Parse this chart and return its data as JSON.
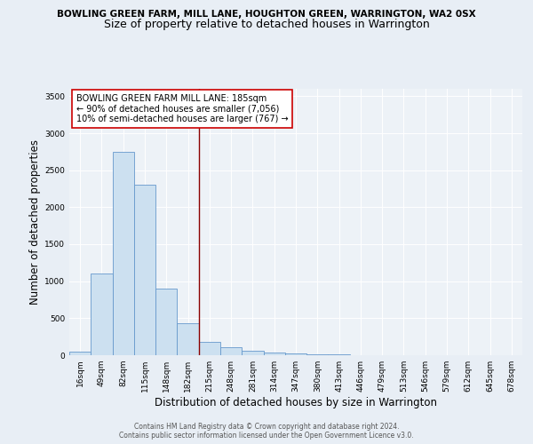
{
  "title1": "BOWLING GREEN FARM, MILL LANE, HOUGHTON GREEN, WARRINGTON, WA2 0SX",
  "title2": "Size of property relative to detached houses in Warrington",
  "xlabel": "Distribution of detached houses by size in Warrington",
  "ylabel": "Number of detached properties",
  "footer1": "Contains HM Land Registry data © Crown copyright and database right 2024.",
  "footer2": "Contains public sector information licensed under the Open Government Licence v3.0.",
  "annotation_line1": "BOWLING GREEN FARM MILL LANE: 185sqm",
  "annotation_line2": "← 90% of detached houses are smaller (7,056)",
  "annotation_line3": "10% of semi-detached houses are larger (767) →",
  "bar_labels": [
    "16sqm",
    "49sqm",
    "82sqm",
    "115sqm",
    "148sqm",
    "182sqm",
    "215sqm",
    "248sqm",
    "281sqm",
    "314sqm",
    "347sqm",
    "380sqm",
    "413sqm",
    "446sqm",
    "479sqm",
    "513sqm",
    "546sqm",
    "579sqm",
    "612sqm",
    "645sqm",
    "678sqm"
  ],
  "bar_values": [
    50,
    1100,
    2750,
    2300,
    900,
    430,
    185,
    110,
    65,
    40,
    25,
    18,
    10,
    5,
    3,
    2,
    1,
    0,
    0,
    0,
    0
  ],
  "bar_color": "#cce0f0",
  "bar_edge_color": "#6699cc",
  "vline_x": 5.5,
  "vline_color": "#8b0000",
  "ylim": [
    0,
    3600
  ],
  "yticks": [
    0,
    500,
    1000,
    1500,
    2000,
    2500,
    3000,
    3500
  ],
  "bg_color": "#e8eef5",
  "plot_bg_color": "#edf2f7",
  "grid_color": "#ffffff",
  "title1_fontsize": 7.5,
  "title2_fontsize": 9,
  "axis_label_fontsize": 8.5,
  "tick_fontsize": 6.5,
  "footer_fontsize": 5.5,
  "ann_fontsize": 7
}
